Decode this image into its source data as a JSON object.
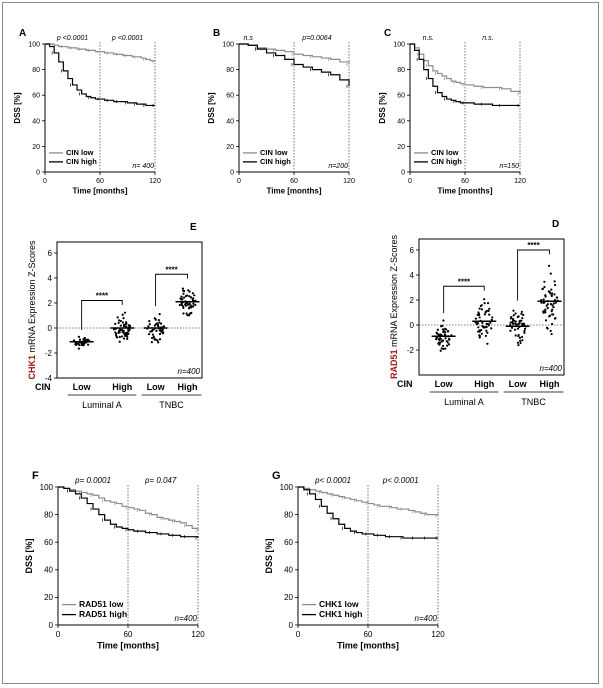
{
  "figure": {
    "frame_color": "#8a8a8a"
  },
  "colors": {
    "low": "#8c8c8c",
    "high": "#000000",
    "accent": "#a31515"
  },
  "chart_data": [
    {
      "id": "A",
      "type": "line",
      "panel_label": "A",
      "kind": "km",
      "title": "",
      "xlabel": "Time [months]",
      "ylabel": "DSS [%]",
      "xlim": [
        0,
        120
      ],
      "ylim": [
        0,
        100
      ],
      "xticks": [
        0,
        60,
        120
      ],
      "yticks": [
        0,
        20,
        40,
        60,
        80,
        100
      ],
      "vlines": [
        60,
        120
      ],
      "pvalues": [
        {
          "text": "p <0.0001",
          "x": 30
        },
        {
          "text": "p <0.0001",
          "x": 90
        }
      ],
      "n_label": "n= 400",
      "series": [
        {
          "name": "CIN low",
          "color": "low",
          "x": [
            0,
            5,
            10,
            15,
            20,
            25,
            30,
            35,
            40,
            45,
            50,
            55,
            60,
            65,
            70,
            75,
            80,
            85,
            90,
            95,
            100,
            105,
            110,
            115,
            120
          ],
          "y": [
            100,
            100,
            99,
            98,
            98,
            97,
            97,
            96,
            96,
            95,
            95,
            94,
            94,
            93,
            93,
            92,
            92,
            91,
            91,
            90,
            90,
            89,
            88,
            87,
            86
          ]
        },
        {
          "name": "CIN high",
          "color": "high",
          "x": [
            0,
            5,
            10,
            15,
            20,
            25,
            30,
            35,
            40,
            45,
            50,
            55,
            60,
            65,
            70,
            75,
            80,
            85,
            90,
            95,
            100,
            105,
            110,
            115,
            120
          ],
          "y": [
            100,
            98,
            93,
            86,
            79,
            73,
            68,
            64,
            61,
            59,
            58,
            57,
            57,
            56,
            56,
            55,
            55,
            55,
            54,
            54,
            53,
            53,
            52,
            52,
            52
          ]
        }
      ]
    },
    {
      "id": "B",
      "type": "line",
      "panel_label": "B",
      "kind": "km",
      "title": "",
      "xlabel": "Time [months]",
      "ylabel": "DSS [%]",
      "xlim": [
        0,
        120
      ],
      "ylim": [
        0,
        100
      ],
      "xticks": [
        0,
        60,
        120
      ],
      "yticks": [
        0,
        20,
        40,
        60,
        80,
        100
      ],
      "vlines": [
        60,
        120
      ],
      "pvalues": [
        {
          "text": "n.s",
          "x": 10
        },
        {
          "text": "p=0.0064",
          "x": 85
        }
      ],
      "n_label": "n=200",
      "series": [
        {
          "name": "CIN low",
          "color": "low",
          "x": [
            0,
            10,
            20,
            30,
            40,
            50,
            60,
            70,
            80,
            90,
            100,
            110,
            120
          ],
          "y": [
            100,
            99,
            97,
            96,
            95,
            94,
            92,
            91,
            90,
            89,
            88,
            86,
            84
          ]
        },
        {
          "name": "CIN high",
          "color": "high",
          "x": [
            0,
            10,
            20,
            30,
            40,
            50,
            60,
            70,
            80,
            90,
            100,
            110,
            120
          ],
          "y": [
            100,
            99,
            96,
            93,
            91,
            88,
            84,
            82,
            80,
            78,
            76,
            72,
            67
          ]
        }
      ]
    },
    {
      "id": "C",
      "type": "line",
      "panel_label": "C",
      "kind": "km",
      "title": "",
      "xlabel": "Time [months]",
      "ylabel": "DSS [%]",
      "xlim": [
        0,
        120
      ],
      "ylim": [
        0,
        100
      ],
      "xticks": [
        0,
        60,
        120
      ],
      "yticks": [
        0,
        20,
        40,
        60,
        80,
        100
      ],
      "vlines": [
        60,
        120
      ],
      "pvalues": [
        {
          "text": "n.s.",
          "x": 20
        },
        {
          "text": "n.s.",
          "x": 85
        }
      ],
      "n_label": "n=150",
      "series": [
        {
          "name": "CIN low",
          "color": "low",
          "x": [
            0,
            5,
            10,
            15,
            20,
            25,
            30,
            35,
            40,
            45,
            50,
            55,
            60,
            70,
            80,
            90,
            100,
            110,
            120
          ],
          "y": [
            100,
            97,
            92,
            87,
            83,
            79,
            77,
            75,
            73,
            71,
            70,
            69,
            68,
            67,
            66,
            66,
            65,
            63,
            61
          ]
        },
        {
          "name": "CIN high",
          "color": "high",
          "x": [
            0,
            5,
            10,
            15,
            20,
            25,
            30,
            35,
            40,
            45,
            50,
            55,
            60,
            70,
            80,
            90,
            100,
            110,
            120
          ],
          "y": [
            100,
            95,
            88,
            80,
            73,
            67,
            62,
            59,
            57,
            56,
            55,
            54,
            54,
            53,
            53,
            52,
            52,
            52,
            52
          ]
        }
      ]
    },
    {
      "id": "E",
      "type": "scatter",
      "panel_label": "E",
      "kind": "dot",
      "gene": "CHK1",
      "ylabel_rest": " mRNA Expression Z-Scores",
      "ylim": [
        -4,
        8
      ],
      "yticks": [
        -4,
        -2,
        0,
        2,
        4,
        6
      ],
      "group_prefix": "CIN",
      "categories": [
        "Low",
        "High",
        "Low",
        "High"
      ],
      "subtypes": [
        "Luminal  A",
        "TNBC"
      ],
      "significance": "****",
      "n_label": "n=400",
      "groups": [
        {
          "name": "Luminal A - CIN Low",
          "median": -1.1,
          "min": -1.7,
          "max": -0.5,
          "count": 45,
          "seed": 11
        },
        {
          "name": "Luminal A - CIN High",
          "median": 0.0,
          "min": -1.1,
          "max": 1.5,
          "count": 55,
          "seed": 23
        },
        {
          "name": "TNBC - CIN Low",
          "median": 0.0,
          "min": -1.6,
          "max": 1.4,
          "count": 50,
          "seed": 37
        },
        {
          "name": "TNBC - CIN High",
          "median": 2.1,
          "min": 0.8,
          "max": 3.6,
          "count": 55,
          "seed": 41
        }
      ]
    },
    {
      "id": "D",
      "type": "scatter",
      "panel_label": "D",
      "kind": "dot",
      "gene": "RAD51",
      "ylabel_rest": " mRNA Expression Z-Scores",
      "ylim": [
        -4,
        8
      ],
      "yticks": [
        -2,
        0,
        2,
        4,
        6
      ],
      "group_prefix": "CIN",
      "categories": [
        "Low",
        "High",
        "Low",
        "High"
      ],
      "subtypes": [
        "Luminal  A",
        "TNBC"
      ],
      "significance": "****",
      "n_label": "n=400",
      "groups": [
        {
          "name": "Luminal A - CIN Low",
          "median": -0.9,
          "min": -2.2,
          "max": 0.6,
          "count": 50,
          "seed": 5
        },
        {
          "name": "Luminal A - CIN High",
          "median": 0.3,
          "min": -1.5,
          "max": 2.4,
          "count": 55,
          "seed": 17
        },
        {
          "name": "TNBC - CIN Low",
          "median": -0.1,
          "min": -2.1,
          "max": 1.6,
          "count": 50,
          "seed": 29
        },
        {
          "name": "TNBC - CIN High",
          "median": 1.9,
          "min": -0.9,
          "max": 5.3,
          "count": 55,
          "seed": 53
        }
      ]
    },
    {
      "id": "F",
      "type": "line",
      "panel_label": "F",
      "kind": "km",
      "title": "",
      "xlabel": "Time [months]",
      "ylabel": "DSS [%]",
      "xlim": [
        0,
        120
      ],
      "ylim": [
        0,
        100
      ],
      "xticks": [
        0,
        60,
        120
      ],
      "yticks": [
        0,
        20,
        40,
        60,
        80,
        100
      ],
      "vlines": [
        60,
        120
      ],
      "pvalues": [
        {
          "text": "p= 0.0001",
          "x": 30
        },
        {
          "text": "p= 0.047",
          "x": 88
        }
      ],
      "n_label": "n=400",
      "series": [
        {
          "name": "RAD51 low",
          "color": "low",
          "x": [
            0,
            5,
            10,
            15,
            20,
            25,
            30,
            35,
            40,
            45,
            50,
            55,
            60,
            65,
            70,
            75,
            80,
            85,
            90,
            95,
            100,
            105,
            110,
            115,
            120
          ],
          "y": [
            100,
            99,
            98,
            97,
            96,
            95,
            94,
            92,
            90,
            89,
            88,
            86,
            85,
            84,
            83,
            81,
            80,
            78,
            77,
            76,
            75,
            74,
            72,
            70,
            68
          ]
        },
        {
          "name": "RAD51 high",
          "color": "high",
          "x": [
            0,
            5,
            10,
            15,
            20,
            25,
            30,
            35,
            40,
            45,
            50,
            55,
            60,
            65,
            70,
            75,
            80,
            85,
            90,
            95,
            100,
            105,
            110,
            115,
            120
          ],
          "y": [
            100,
            99,
            97,
            95,
            92,
            88,
            84,
            80,
            76,
            73,
            71,
            70,
            69,
            68,
            68,
            67,
            67,
            66,
            66,
            65,
            65,
            64,
            64,
            64,
            63
          ]
        }
      ]
    },
    {
      "id": "G",
      "type": "line",
      "panel_label": "G",
      "kind": "km",
      "title": "",
      "xlabel": "Time [months]",
      "ylabel": "DSS [%]",
      "xlim": [
        0,
        120
      ],
      "ylim": [
        0,
        100
      ],
      "xticks": [
        0,
        60,
        120
      ],
      "yticks": [
        0,
        20,
        40,
        60,
        80,
        100
      ],
      "vlines": [
        60,
        120
      ],
      "pvalues": [
        {
          "text": "p< 0.0001",
          "x": 30
        },
        {
          "text": "p< 0.0001",
          "x": 88
        }
      ],
      "n_label": "n=400",
      "series": [
        {
          "name": "CHK1 low",
          "color": "low",
          "x": [
            0,
            5,
            10,
            15,
            20,
            25,
            30,
            35,
            40,
            45,
            50,
            55,
            60,
            65,
            70,
            75,
            80,
            85,
            90,
            95,
            100,
            105,
            110,
            115,
            120
          ],
          "y": [
            100,
            99,
            98,
            97,
            96,
            95,
            94,
            93,
            92,
            91,
            90,
            89,
            88,
            87,
            86,
            86,
            85,
            84,
            84,
            83,
            82,
            81,
            80,
            80,
            79
          ]
        },
        {
          "name": "CHK1 high",
          "color": "high",
          "x": [
            0,
            5,
            10,
            15,
            20,
            25,
            30,
            35,
            40,
            45,
            50,
            55,
            60,
            65,
            70,
            75,
            80,
            85,
            90,
            95,
            100,
            105,
            110,
            115,
            120
          ],
          "y": [
            100,
            98,
            95,
            91,
            86,
            81,
            77,
            73,
            70,
            68,
            67,
            66,
            66,
            65,
            65,
            64,
            64,
            64,
            63,
            63,
            63,
            63,
            63,
            63,
            63
          ]
        }
      ]
    }
  ]
}
